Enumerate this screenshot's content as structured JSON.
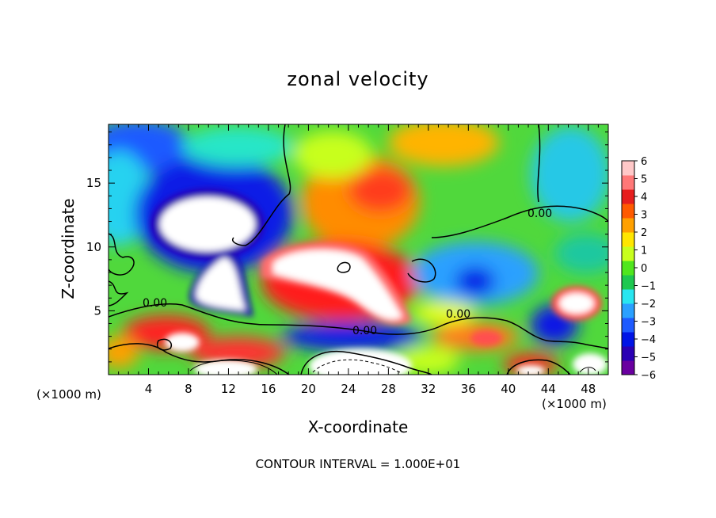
{
  "chart_data": {
    "type": "heatmap",
    "title": "zonal velocity",
    "xlabel": "X-coordinate",
    "ylabel": "Z-coordinate",
    "x_unit_label": "(×1000 m)",
    "footer": "CONTOUR INTERVAL = 1.000E+01",
    "xlim": [
      0,
      50
    ],
    "ylim": [
      0,
      19.6
    ],
    "x_ticks": [
      4,
      8,
      12,
      16,
      20,
      24,
      28,
      32,
      36,
      40,
      44,
      48
    ],
    "y_ticks": [
      5,
      10,
      15
    ],
    "colorbar": {
      "min": -6,
      "max": 6,
      "tick_labels": [
        "6",
        "5",
        "4",
        "3",
        "2",
        "1",
        "0",
        "−1",
        "−2",
        "−3",
        "−4",
        "−5",
        "−6"
      ],
      "colors": [
        "#6a00a0",
        "#2a00b4",
        "#0014e6",
        "#1e5aff",
        "#2aa0ff",
        "#28e6f0",
        "#1ec850",
        "#50e61e",
        "#c8ff1e",
        "#ffe600",
        "#ffa000",
        "#ff5a00",
        "#e61e1e",
        "#ff7878",
        "#ffc8c8"
      ]
    },
    "contour_labels": [
      "0.00",
      "0.00",
      "0.00",
      "0.00"
    ],
    "field_features": [
      {
        "x": 11,
        "y": 11.8,
        "kind": "beyond-range"
      },
      {
        "x": 8.5,
        "y": 13,
        "kind": "negative"
      },
      {
        "x": 10.5,
        "y": 7,
        "kind": "beyond-range"
      },
      {
        "x": 27,
        "y": 8,
        "kind": "beyond-range"
      },
      {
        "x": 24,
        "y": 12,
        "kind": "positive"
      },
      {
        "x": 26,
        "y": 16,
        "kind": "positive"
      },
      {
        "x": 36,
        "y": 7.5,
        "kind": "negative"
      },
      {
        "x": 46,
        "y": 6,
        "kind": "beyond-range"
      },
      {
        "x": 44.5,
        "y": 3.5,
        "kind": "negative"
      },
      {
        "x": 6,
        "y": 3,
        "kind": "positive"
      },
      {
        "x": 12,
        "y": 1.5,
        "kind": "positive"
      },
      {
        "x": 37,
        "y": 3,
        "kind": "positive"
      },
      {
        "x": 28,
        "y": 1,
        "kind": "beyond-range"
      },
      {
        "x": 4.5,
        "y": 18.5,
        "kind": "negative"
      },
      {
        "x": 45,
        "y": 17.5,
        "kind": "negative"
      }
    ]
  }
}
